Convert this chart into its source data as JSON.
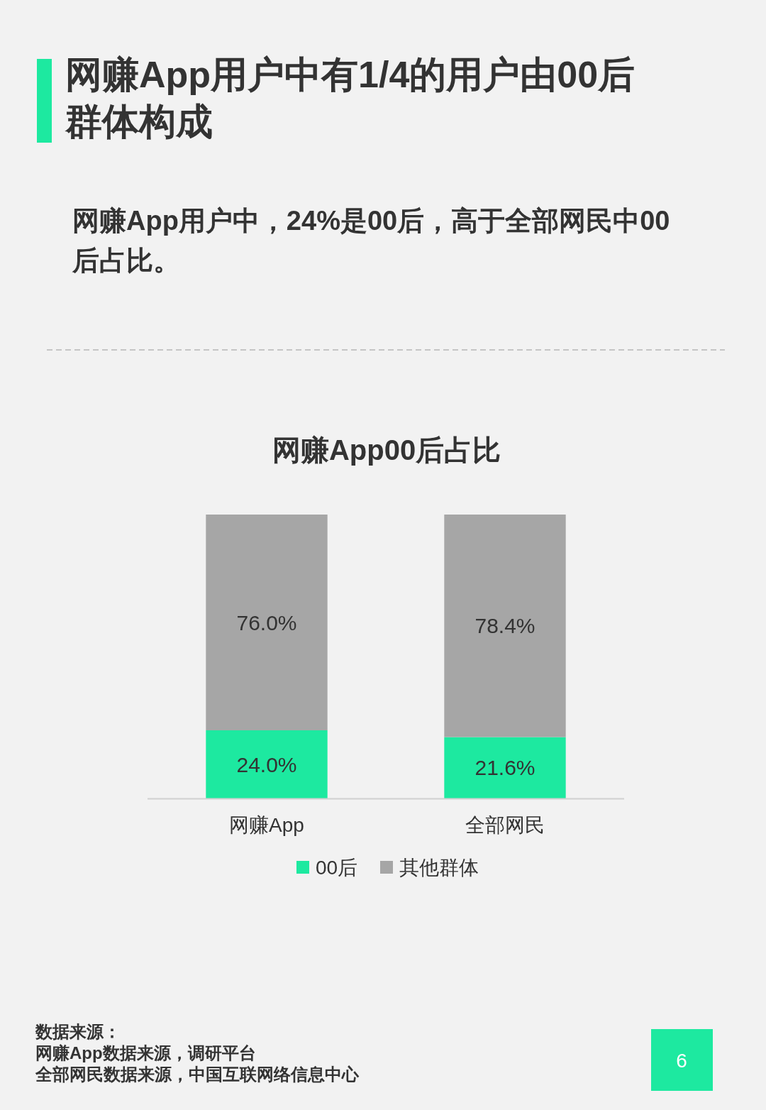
{
  "chart_data": {
    "type": "bar",
    "title": "网赚App用户中有1/4的用户由00后群体构成",
    "subtitle": "网赚App用户中，24%是00后，高于全部网民中00后占比。",
    "categories": [
      "网赚App",
      "全部网民"
    ],
    "stacked": true,
    "series": [
      {
        "name": "00后",
        "color": "#1de9a0",
        "values": [
          24.0,
          21.6
        ],
        "value_labels": [
          "24.0%",
          "21.6%"
        ]
      },
      {
        "name": "其他群体",
        "color": "#a6a6a6",
        "values": [
          76.0,
          78.4
        ],
        "value_labels": [
          "76.0%",
          "78.4%"
        ]
      }
    ],
    "legend": "bottom",
    "tick_labels": "x",
    "annotations": [
      "网赚App00后占比",
      "数据来源：",
      "网赚App数据来源，调研平台",
      "全部网民数据来源，中国互联网络信息中心",
      "6"
    ]
  }
}
